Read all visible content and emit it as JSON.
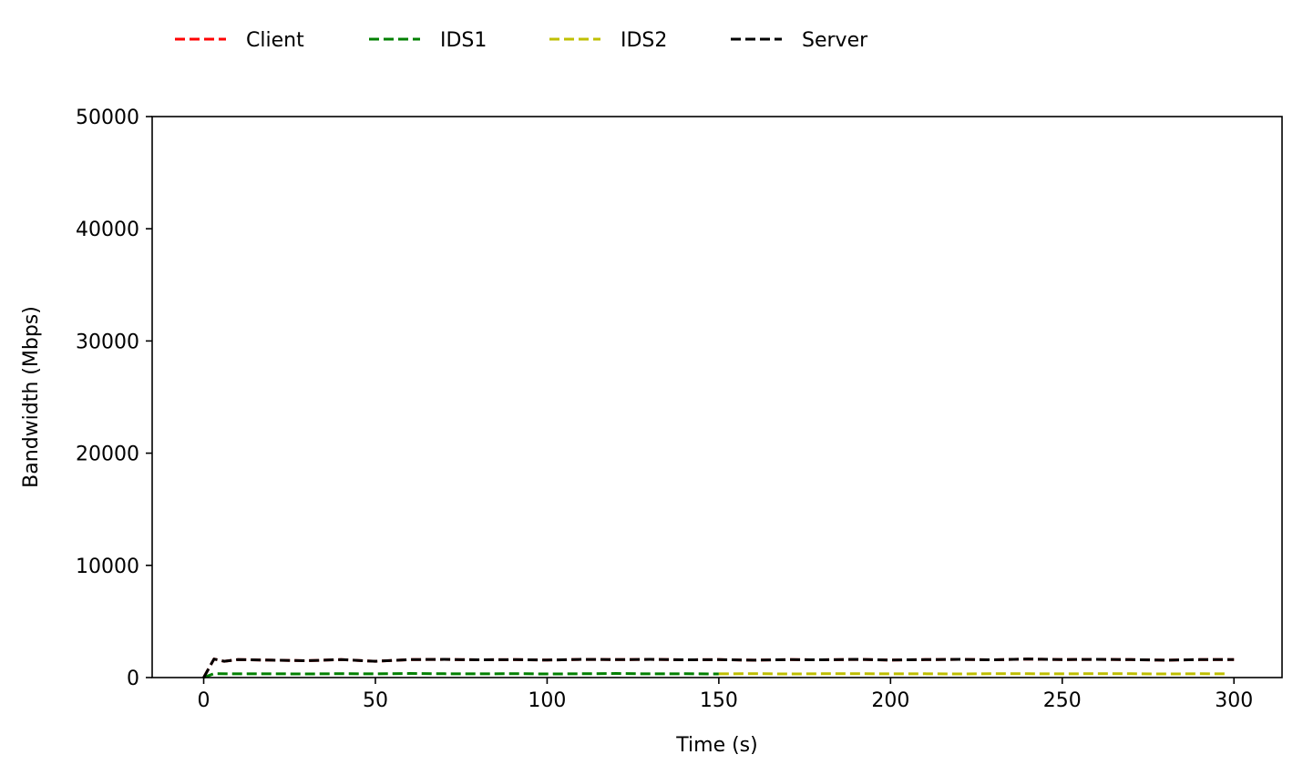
{
  "chart_data": {
    "type": "line",
    "title": "",
    "xlabel": "Time (s)",
    "ylabel": "Bandwidth (Mbps)",
    "xlim": [
      -15,
      314
    ],
    "ylim": [
      0,
      50000
    ],
    "x_ticks": [
      0,
      50,
      100,
      150,
      200,
      250,
      300
    ],
    "y_ticks": [
      0,
      10000,
      20000,
      30000,
      40000,
      50000
    ],
    "grid": false,
    "legend_position": "top-left, outside plot, single row",
    "series": [
      {
        "name": "Client",
        "color": "#ff0000",
        "style": "dashed",
        "x": [
          0,
          3,
          6,
          10,
          20,
          30,
          40,
          50,
          60,
          70,
          80,
          90,
          100,
          110,
          120,
          130,
          140,
          150,
          160,
          170,
          180,
          190,
          200,
          210,
          220,
          230,
          240,
          250,
          260,
          270,
          280,
          290,
          300
        ],
        "y": [
          0,
          1650,
          1450,
          1600,
          1550,
          1500,
          1600,
          1450,
          1600,
          1620,
          1580,
          1600,
          1560,
          1620,
          1600,
          1620,
          1580,
          1600,
          1550,
          1600,
          1580,
          1620,
          1560,
          1600,
          1620,
          1580,
          1650,
          1600,
          1620,
          1600,
          1550,
          1600,
          1600
        ]
      },
      {
        "name": "IDS1",
        "color": "#008000",
        "style": "dashed",
        "x": [
          0,
          3,
          10,
          20,
          30,
          40,
          50,
          60,
          70,
          80,
          90,
          100,
          110,
          120,
          130,
          140,
          150
        ],
        "y": [
          0,
          350,
          330,
          340,
          320,
          350,
          330,
          360,
          340,
          330,
          350,
          320,
          340,
          360,
          330,
          340,
          320
        ]
      },
      {
        "name": "IDS2",
        "color": "#bfbf00",
        "style": "dashed",
        "x": [
          150,
          160,
          170,
          180,
          190,
          200,
          210,
          220,
          230,
          240,
          250,
          260,
          270,
          280,
          290,
          298
        ],
        "y": [
          330,
          350,
          320,
          340,
          350,
          330,
          340,
          320,
          350,
          340,
          330,
          350,
          340,
          320,
          340,
          330
        ]
      },
      {
        "name": "Server",
        "color": "#000000",
        "style": "dashed",
        "x": [
          0,
          3,
          6,
          10,
          20,
          30,
          40,
          50,
          60,
          70,
          80,
          90,
          100,
          110,
          120,
          130,
          140,
          150,
          160,
          170,
          180,
          190,
          200,
          210,
          220,
          230,
          240,
          250,
          260,
          270,
          280,
          290,
          300
        ],
        "y": [
          0,
          1650,
          1450,
          1600,
          1550,
          1500,
          1600,
          1450,
          1600,
          1620,
          1580,
          1600,
          1560,
          1620,
          1600,
          1620,
          1580,
          1600,
          1550,
          1600,
          1580,
          1620,
          1560,
          1600,
          1620,
          1580,
          1650,
          1600,
          1620,
          1600,
          1550,
          1600,
          1600
        ]
      }
    ]
  }
}
